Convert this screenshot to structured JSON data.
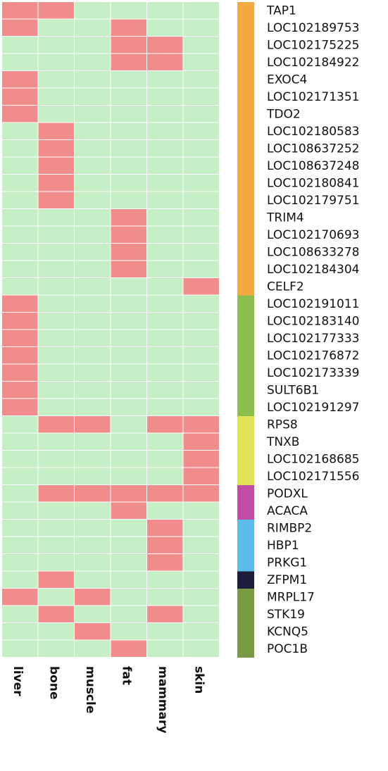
{
  "chart_data": {
    "type": "heatmap",
    "columns": [
      "liver",
      "bone",
      "muscle",
      "fat",
      "mammary",
      "skin"
    ],
    "rows": [
      "TAP1",
      "LOC102189753",
      "LOC102175225",
      "LOC102184922",
      "EXOC4",
      "LOC102171351",
      "TDO2",
      "LOC102180583",
      "LOC108637252",
      "LOC108637248",
      "LOC102180841",
      "LOC102179751",
      "TRIM4",
      "LOC102170693",
      "LOC108633278",
      "LOC102184304",
      "CELF2",
      "LOC102191011",
      "LOC102183140",
      "LOC102177333",
      "LOC102176872",
      "LOC102173339",
      "SULT6B1",
      "LOC102191297",
      "RPS8",
      "TNXB",
      "LOC102168685",
      "LOC102171556",
      "PODXL",
      "ACACA",
      "RIMBP2",
      "HBP1",
      "PRKG1",
      "ZFPM1",
      "MRPL17",
      "STK19",
      "KCNQ5",
      "POC1B"
    ],
    "matrix": [
      [
        1,
        1,
        0,
        0,
        0,
        0
      ],
      [
        1,
        0,
        0,
        1,
        0,
        0
      ],
      [
        0,
        0,
        0,
        1,
        1,
        0
      ],
      [
        0,
        0,
        0,
        1,
        1,
        0
      ],
      [
        1,
        0,
        0,
        0,
        0,
        0
      ],
      [
        1,
        0,
        0,
        0,
        0,
        0
      ],
      [
        1,
        0,
        0,
        0,
        0,
        0
      ],
      [
        0,
        1,
        0,
        0,
        0,
        0
      ],
      [
        0,
        1,
        0,
        0,
        0,
        0
      ],
      [
        0,
        1,
        0,
        0,
        0,
        0
      ],
      [
        0,
        1,
        0,
        0,
        0,
        0
      ],
      [
        0,
        1,
        0,
        0,
        0,
        0
      ],
      [
        0,
        0,
        0,
        1,
        0,
        0
      ],
      [
        0,
        0,
        0,
        1,
        0,
        0
      ],
      [
        0,
        0,
        0,
        1,
        0,
        0
      ],
      [
        0,
        0,
        0,
        1,
        0,
        0
      ],
      [
        0,
        0,
        0,
        0,
        0,
        1
      ],
      [
        1,
        0,
        0,
        0,
        0,
        0
      ],
      [
        1,
        0,
        0,
        0,
        0,
        0
      ],
      [
        1,
        0,
        0,
        0,
        0,
        0
      ],
      [
        1,
        0,
        0,
        0,
        0,
        0
      ],
      [
        1,
        0,
        0,
        0,
        0,
        0
      ],
      [
        1,
        0,
        0,
        0,
        0,
        0
      ],
      [
        1,
        0,
        0,
        0,
        0,
        0
      ],
      [
        0,
        1,
        1,
        0,
        1,
        1
      ],
      [
        0,
        0,
        0,
        0,
        0,
        1
      ],
      [
        0,
        0,
        0,
        0,
        0,
        1
      ],
      [
        0,
        0,
        0,
        0,
        0,
        1
      ],
      [
        0,
        1,
        1,
        1,
        1,
        1
      ],
      [
        0,
        0,
        0,
        1,
        0,
        0
      ],
      [
        0,
        0,
        0,
        0,
        1,
        0
      ],
      [
        0,
        0,
        0,
        0,
        1,
        0
      ],
      [
        0,
        0,
        0,
        0,
        1,
        0
      ],
      [
        0,
        1,
        0,
        0,
        0,
        0
      ],
      [
        1,
        0,
        1,
        0,
        0,
        0
      ],
      [
        0,
        1,
        0,
        0,
        1,
        0
      ],
      [
        0,
        0,
        1,
        0,
        0,
        0
      ],
      [
        0,
        0,
        0,
        1,
        0,
        0
      ]
    ],
    "row_groups": [
      {
        "count": 17,
        "color": "#f5a943"
      },
      {
        "count": 7,
        "color": "#8cbf4e"
      },
      {
        "count": 4,
        "color": "#e3e35a"
      },
      {
        "count": 2,
        "color": "#c24ba6"
      },
      {
        "count": 3,
        "color": "#5bbde8"
      },
      {
        "count": 1,
        "color": "#1e1e3c"
      },
      {
        "count": 4,
        "color": "#7b9a44"
      }
    ],
    "colors": {
      "high": "#f08c8c",
      "low": "#c6efc6",
      "grid": "#ffffff"
    }
  }
}
